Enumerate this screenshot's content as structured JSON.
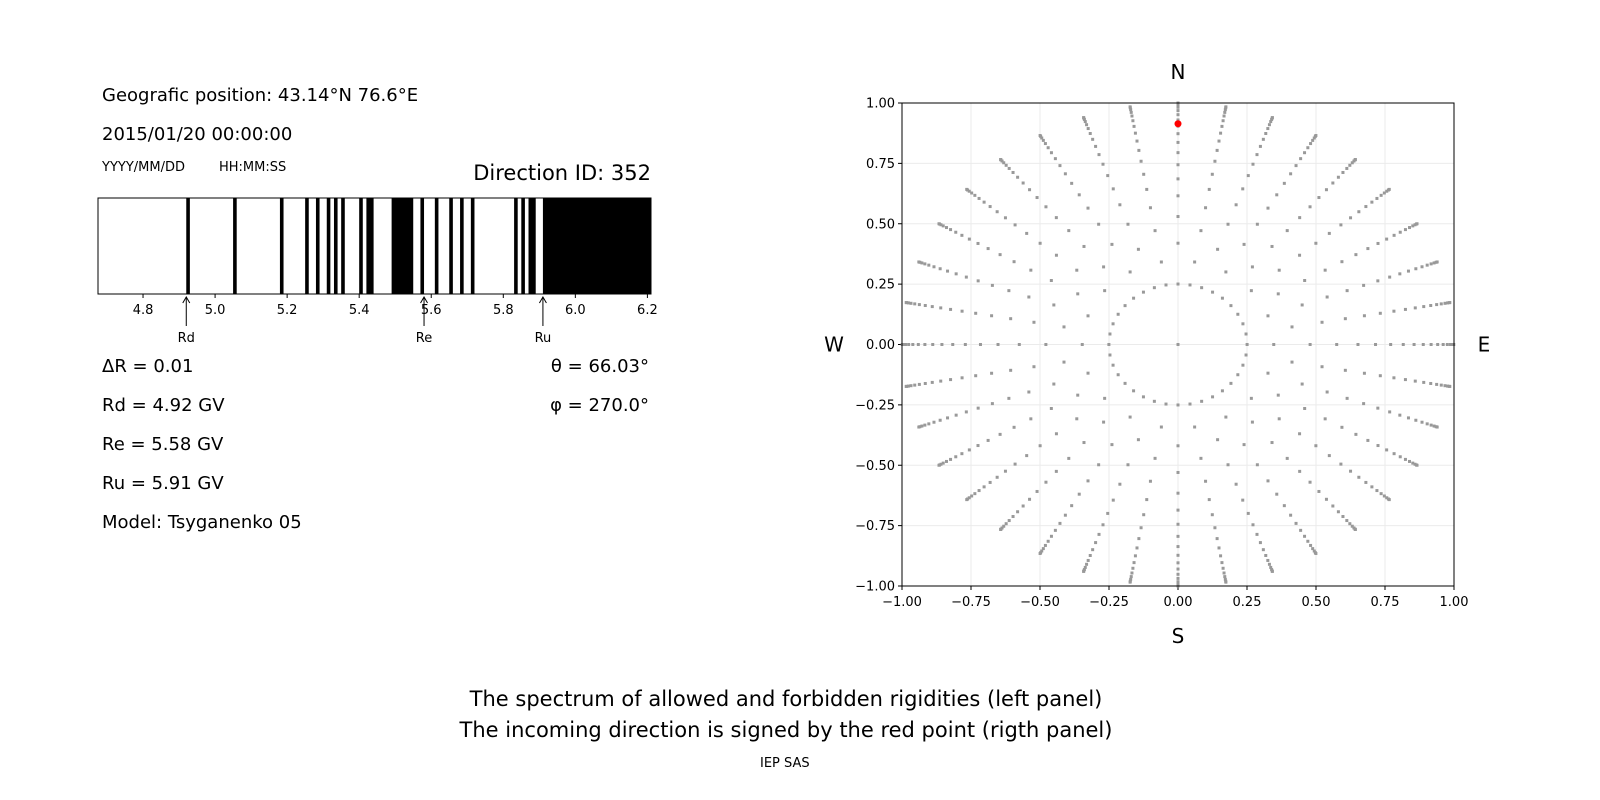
{
  "left_panel": {
    "position_line": "Geografic position: 43.14°N 76.6°E",
    "datetime_line": "2015/01/20 00:00:00",
    "date_format": "YYYY/MM/DD",
    "time_format": "HH:MM:SS",
    "direction_id": "Direction ID: 352",
    "delta_r": "ΔR = 0.01",
    "rd": "Rd = 4.92 GV",
    "re": "Re = 5.58 GV",
    "ru": "Ru = 5.91 GV",
    "model": "Model: Tsyganenko 05",
    "theta": "θ = 66.03°",
    "phi": "φ = 270.0°"
  },
  "caption": {
    "line1": "The spectrum of allowed and forbidden rigidities (left panel)",
    "line2": "The incoming direction is signed by the red point (rigth panel)",
    "credit": "IEP SAS"
  },
  "chart_data": [
    {
      "type": "bar",
      "xlim": [
        4.675,
        6.21
      ],
      "xticks": [
        "4.8",
        "5.0",
        "5.2",
        "5.4",
        "5.6",
        "5.8",
        "6.0",
        "6.2"
      ],
      "xtick_values": [
        4.8,
        5.0,
        5.2,
        5.4,
        5.6,
        5.8,
        6.0,
        6.2
      ],
      "forbidden_bands": [
        [
          4.92,
          4.93
        ],
        [
          5.05,
          5.06
        ],
        [
          5.18,
          5.19
        ],
        [
          5.25,
          5.26
        ],
        [
          5.28,
          5.29
        ],
        [
          5.31,
          5.32
        ],
        [
          5.33,
          5.34
        ],
        [
          5.35,
          5.36
        ],
        [
          5.4,
          5.41
        ],
        [
          5.42,
          5.44
        ],
        [
          5.49,
          5.55
        ],
        [
          5.57,
          5.58
        ],
        [
          5.61,
          5.62
        ],
        [
          5.65,
          5.66
        ],
        [
          5.68,
          5.69
        ],
        [
          5.71,
          5.72
        ],
        [
          5.83,
          5.84
        ],
        [
          5.85,
          5.86
        ],
        [
          5.87,
          5.89
        ],
        [
          5.91,
          6.21
        ]
      ],
      "band_color": "#000000",
      "markers": [
        {
          "label": "Rd",
          "value": 4.92
        },
        {
          "label": "Re",
          "value": 5.58
        },
        {
          "label": "Ru",
          "value": 5.91
        }
      ]
    },
    {
      "type": "scatter",
      "xlim": [
        -1,
        1
      ],
      "ylim": [
        -1,
        1
      ],
      "xticks": [
        "−1.00",
        "−0.75",
        "−0.50",
        "−0.25",
        "0.00",
        "0.25",
        "0.50",
        "0.75",
        "1.00"
      ],
      "yticks": [
        "−1.00",
        "−0.75",
        "−0.50",
        "−0.25",
        "0.00",
        "0.25",
        "0.50",
        "0.75",
        "1.00"
      ],
      "tick_values": [
        -1,
        -0.75,
        -0.5,
        -0.25,
        0,
        0.25,
        0.5,
        0.75,
        1
      ],
      "grid": true,
      "compass": {
        "north": "N",
        "south": "S",
        "west": "W",
        "east": "E"
      },
      "azimuth_step_deg": 10,
      "zenith_deg_even_spokes": [
        14.5,
        24.8,
        32.0,
        38.0,
        43.3,
        48.1,
        52.6,
        56.8,
        60.8,
        64.7,
        68.4,
        72.1,
        75.6,
        79.2,
        82.6,
        86.1,
        89.5
      ],
      "zenith_deg_odd_spokes": [
        14.5,
        20.3,
        28.6,
        35.1,
        40.7,
        45.7,
        50.4,
        54.7,
        58.8,
        62.7,
        66.5,
        70.2,
        73.9,
        77.4,
        80.9,
        84.4,
        87.8
      ],
      "center_point": [
        0,
        0
      ],
      "point_color": "#999999",
      "highlight": {
        "x": 0.0,
        "y": 0.914,
        "theta_deg": 66.03,
        "phi_deg": 270.0,
        "color": "#ff0000"
      }
    }
  ]
}
